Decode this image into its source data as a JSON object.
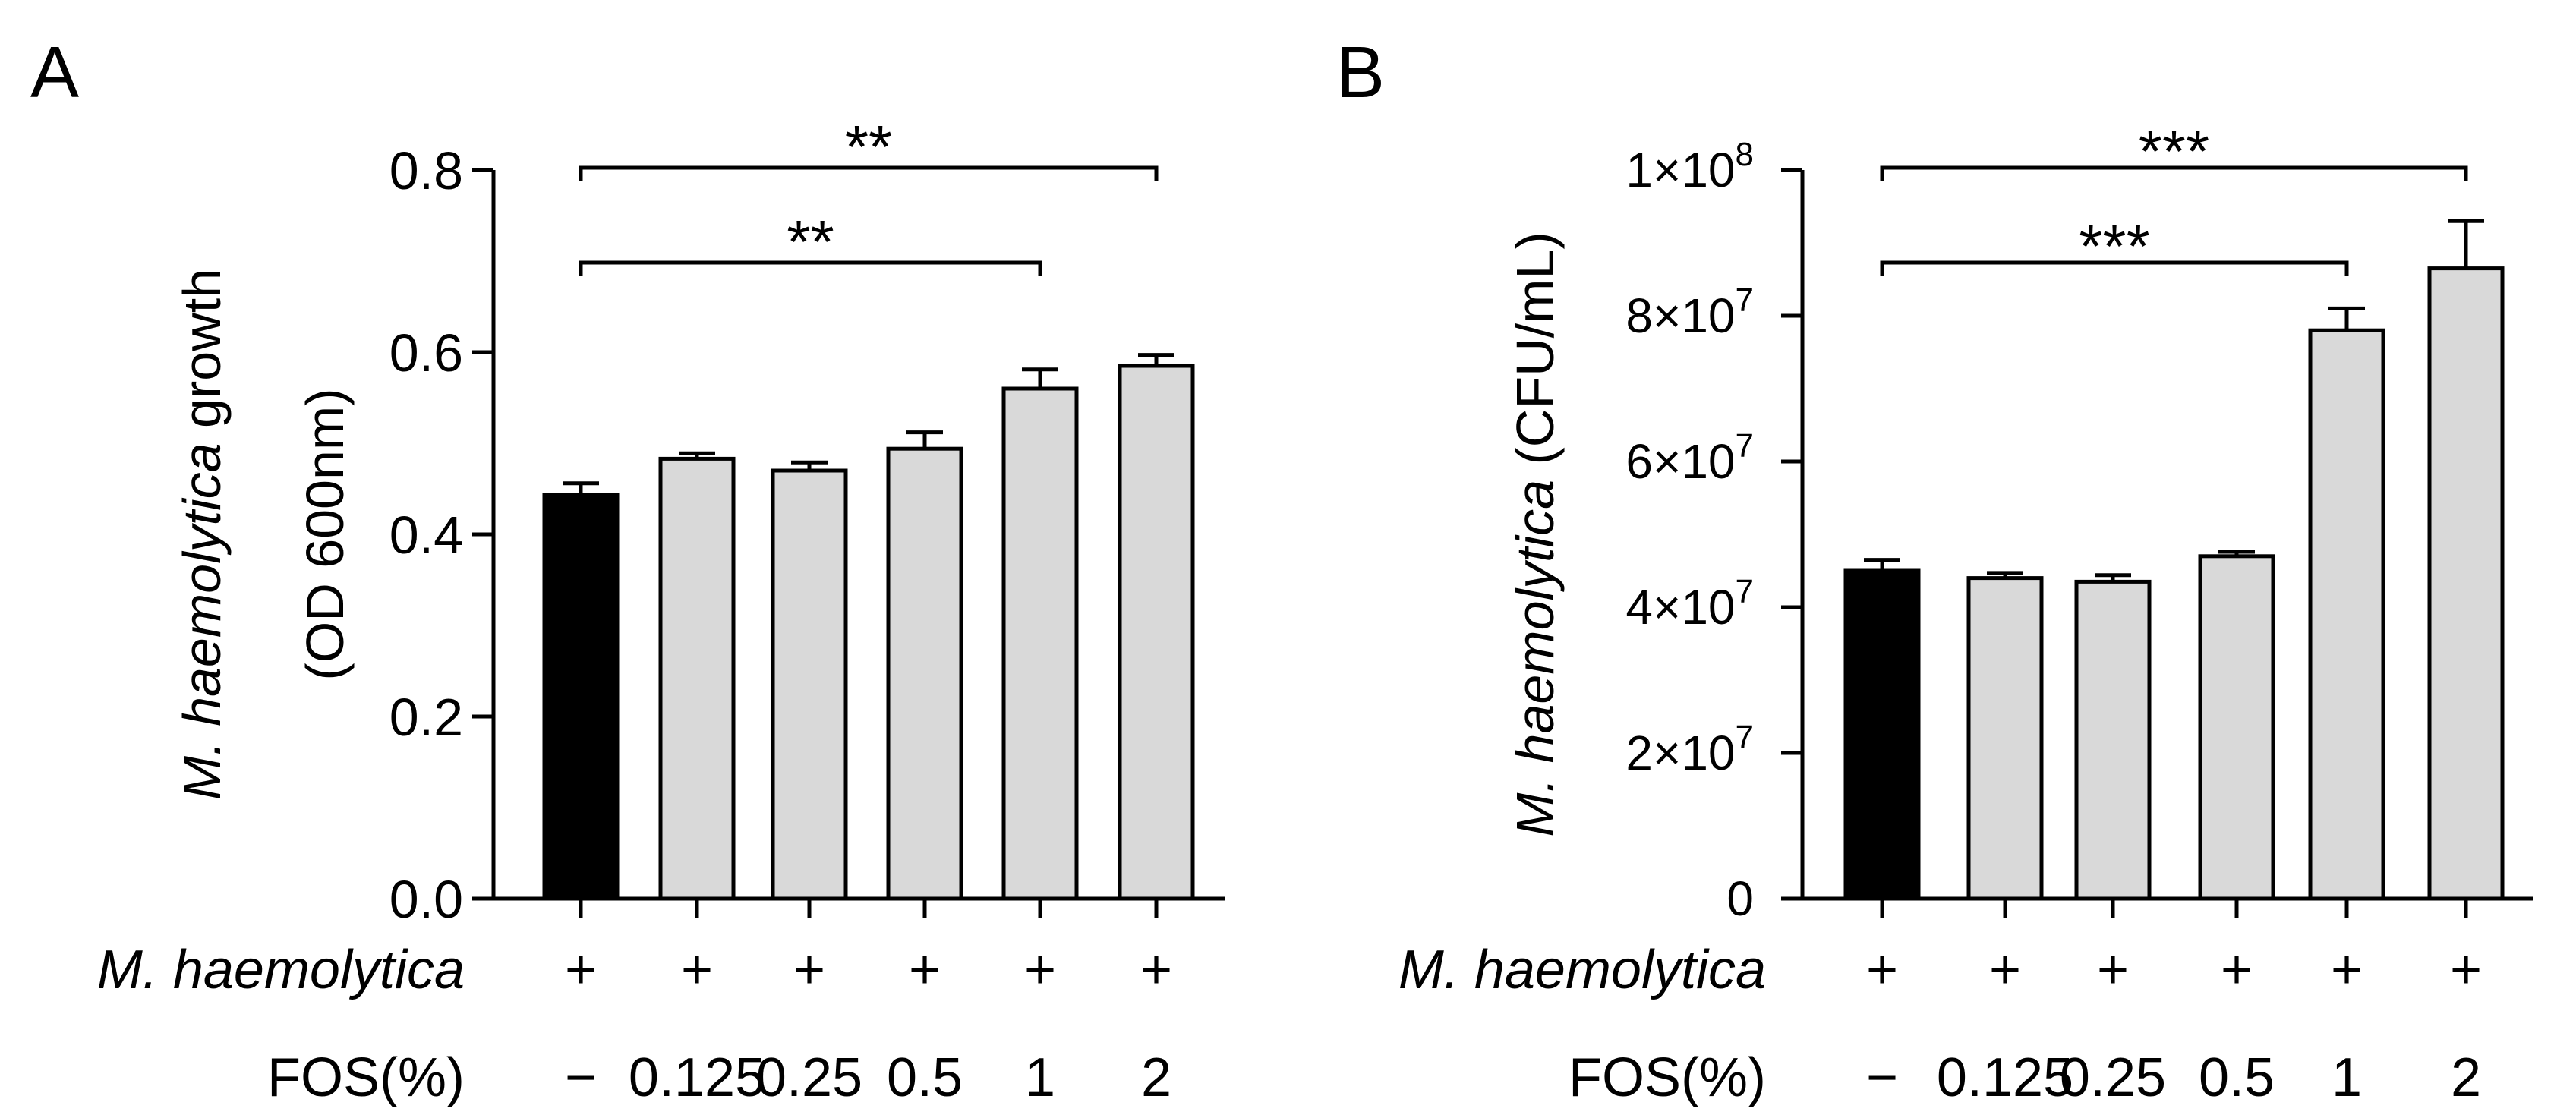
{
  "chart_data": [
    {
      "type": "bar",
      "panel_label": "A",
      "title": "",
      "xlabel": "",
      "ylabel_italic": "M. haemolytica",
      "ylabel_rest": " growth",
      "ylabel_line2": "(OD 600nm)",
      "ylim": [
        0,
        0.8
      ],
      "yticks": [
        0,
        0.2,
        0.4,
        0.6,
        0.8
      ],
      "ytick_labels": [
        "0.0",
        "0.2",
        "0.4",
        "0.6",
        "0.8"
      ],
      "row1_label": "M. haemolytica",
      "row2_label": "FOS(%)",
      "row1_values": [
        "+",
        "+",
        "+",
        "+",
        "+",
        "+"
      ],
      "categories": [
        "−",
        "0.125",
        "0.25",
        "0.5",
        "1",
        "2"
      ],
      "values": [
        0.443,
        0.483,
        0.47,
        0.494,
        0.56,
        0.585
      ],
      "errors": [
        0.013,
        0.006,
        0.009,
        0.018,
        0.021,
        0.012
      ],
      "bar_colors": [
        "#000000",
        "#d9d9d9",
        "#d9d9d9",
        "#d9d9d9",
        "#d9d9d9",
        "#d9d9d9"
      ],
      "significance": [
        {
          "from": 0,
          "to": 5,
          "label": "**"
        },
        {
          "from": 0,
          "to": 4,
          "label": "**"
        }
      ]
    },
    {
      "type": "bar",
      "panel_label": "B",
      "title": "",
      "xlabel": "",
      "ylabel_italic": "M. haemolytica",
      "ylabel_rest": " (CFU/mL)",
      "ylim": [
        0,
        100000000
      ],
      "yticks": [
        0,
        20000000,
        40000000,
        60000000,
        80000000,
        100000000
      ],
      "ytick_labels": [
        {
          "base": "0",
          "exp": ""
        },
        {
          "base": "2×10",
          "exp": "7"
        },
        {
          "base": "4×10",
          "exp": "7"
        },
        {
          "base": "6×10",
          "exp": "7"
        },
        {
          "base": "8×10",
          "exp": "7"
        },
        {
          "base": "1×10",
          "exp": "8"
        }
      ],
      "row1_label": "M. haemolytica",
      "row2_label": "FOS(%)",
      "row1_values": [
        "+",
        "+",
        "+",
        "+",
        "+",
        "+"
      ],
      "categories": [
        "−",
        "0.125",
        "0.25",
        "0.5",
        "1",
        "2"
      ],
      "values": [
        45000000,
        44000000,
        43500000,
        47000000,
        78000000,
        86500000
      ],
      "errors": [
        1500000,
        700000,
        900000,
        600000,
        3000000,
        6500000
      ],
      "bar_colors": [
        "#000000",
        "#d9d9d9",
        "#d9d9d9",
        "#d9d9d9",
        "#d9d9d9",
        "#d9d9d9"
      ],
      "significance": [
        {
          "from": 0,
          "to": 5,
          "label": "***"
        },
        {
          "from": 0,
          "to": 4,
          "label": "***"
        }
      ]
    }
  ]
}
